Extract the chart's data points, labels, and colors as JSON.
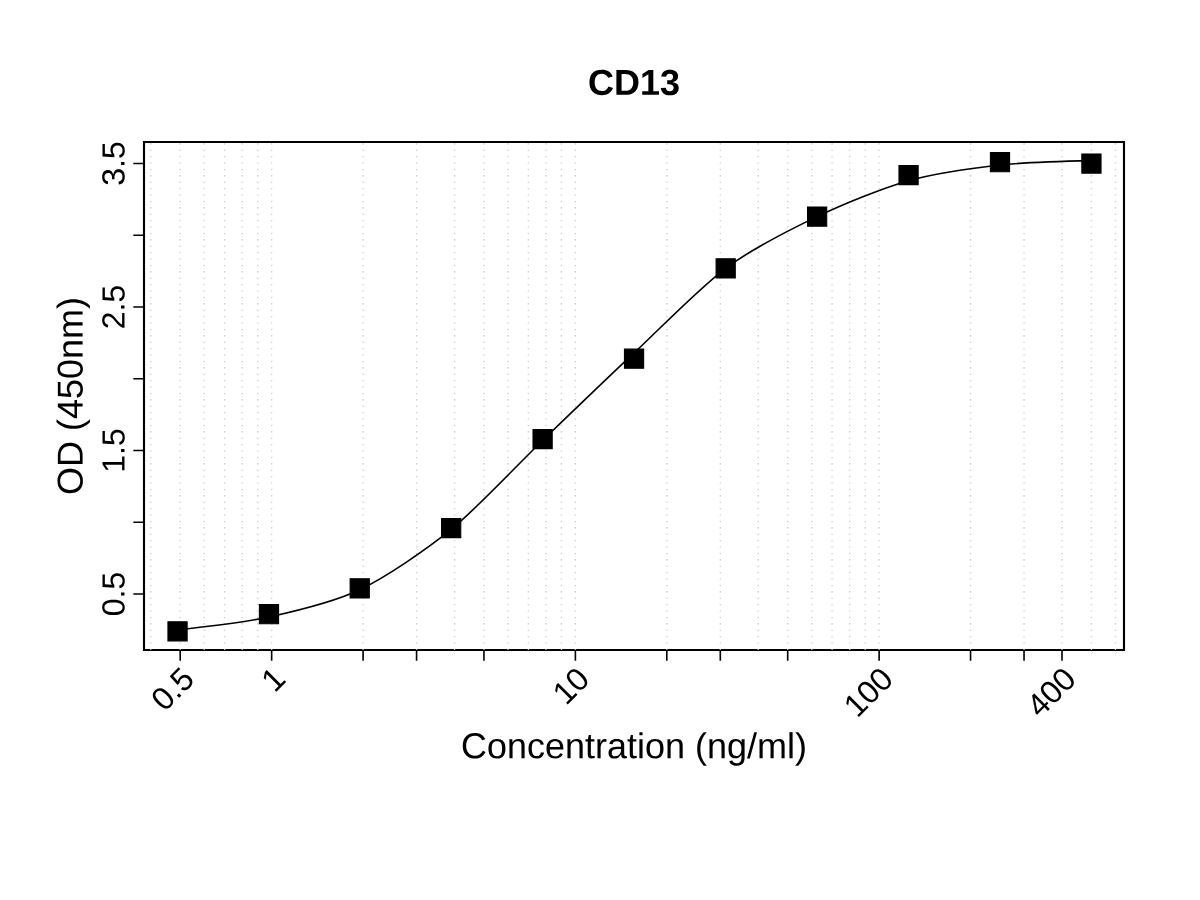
{
  "chart_data": {
    "type": "scatter",
    "title": "CD13",
    "xlabel": "Concentration (ng/ml)",
    "ylabel": "OD (450nm)",
    "log": "x",
    "grid": "x",
    "xlim": [
      0.38,
      640
    ],
    "ylim": [
      0.11,
      3.65
    ],
    "xticks": [
      0.5,
      1,
      {
        "value": 2,
        "label": null
      },
      {
        "value": 3,
        "label": null
      },
      {
        "value": 5,
        "label": null
      },
      10,
      {
        "value": 20,
        "label": null
      },
      {
        "value": 30,
        "label": null
      },
      {
        "value": 50,
        "label": null
      },
      100,
      {
        "value": 200,
        "label": null
      },
      {
        "value": 300,
        "label": null
      },
      400
    ],
    "yticks": [
      0.5,
      {
        "value": 1.0,
        "label": null
      },
      1.5,
      {
        "value": 2.0,
        "label": null
      },
      2.5,
      {
        "value": 3.0,
        "label": null
      },
      3.5
    ],
    "series": [
      {
        "marker": "square",
        "color": "#000000",
        "x": [
          0.49,
          0.98,
          1.95,
          3.9,
          7.8,
          15.6,
          31.25,
          62.5,
          125,
          250,
          500
        ],
        "values": [
          0.24,
          0.36,
          0.54,
          0.96,
          1.58,
          2.14,
          2.77,
          3.13,
          3.42,
          3.51,
          3.5
        ]
      },
      {
        "type": "line",
        "marker": "none",
        "color": "#000000",
        "x": [
          0.49,
          0.98,
          1.95,
          3.9,
          7.8,
          15.6,
          31.25,
          62.5,
          125,
          250,
          500
        ],
        "values": [
          0.25,
          0.34,
          0.53,
          0.95,
          1.57,
          2.18,
          2.77,
          3.13,
          3.38,
          3.49,
          3.52
        ]
      }
    ]
  }
}
